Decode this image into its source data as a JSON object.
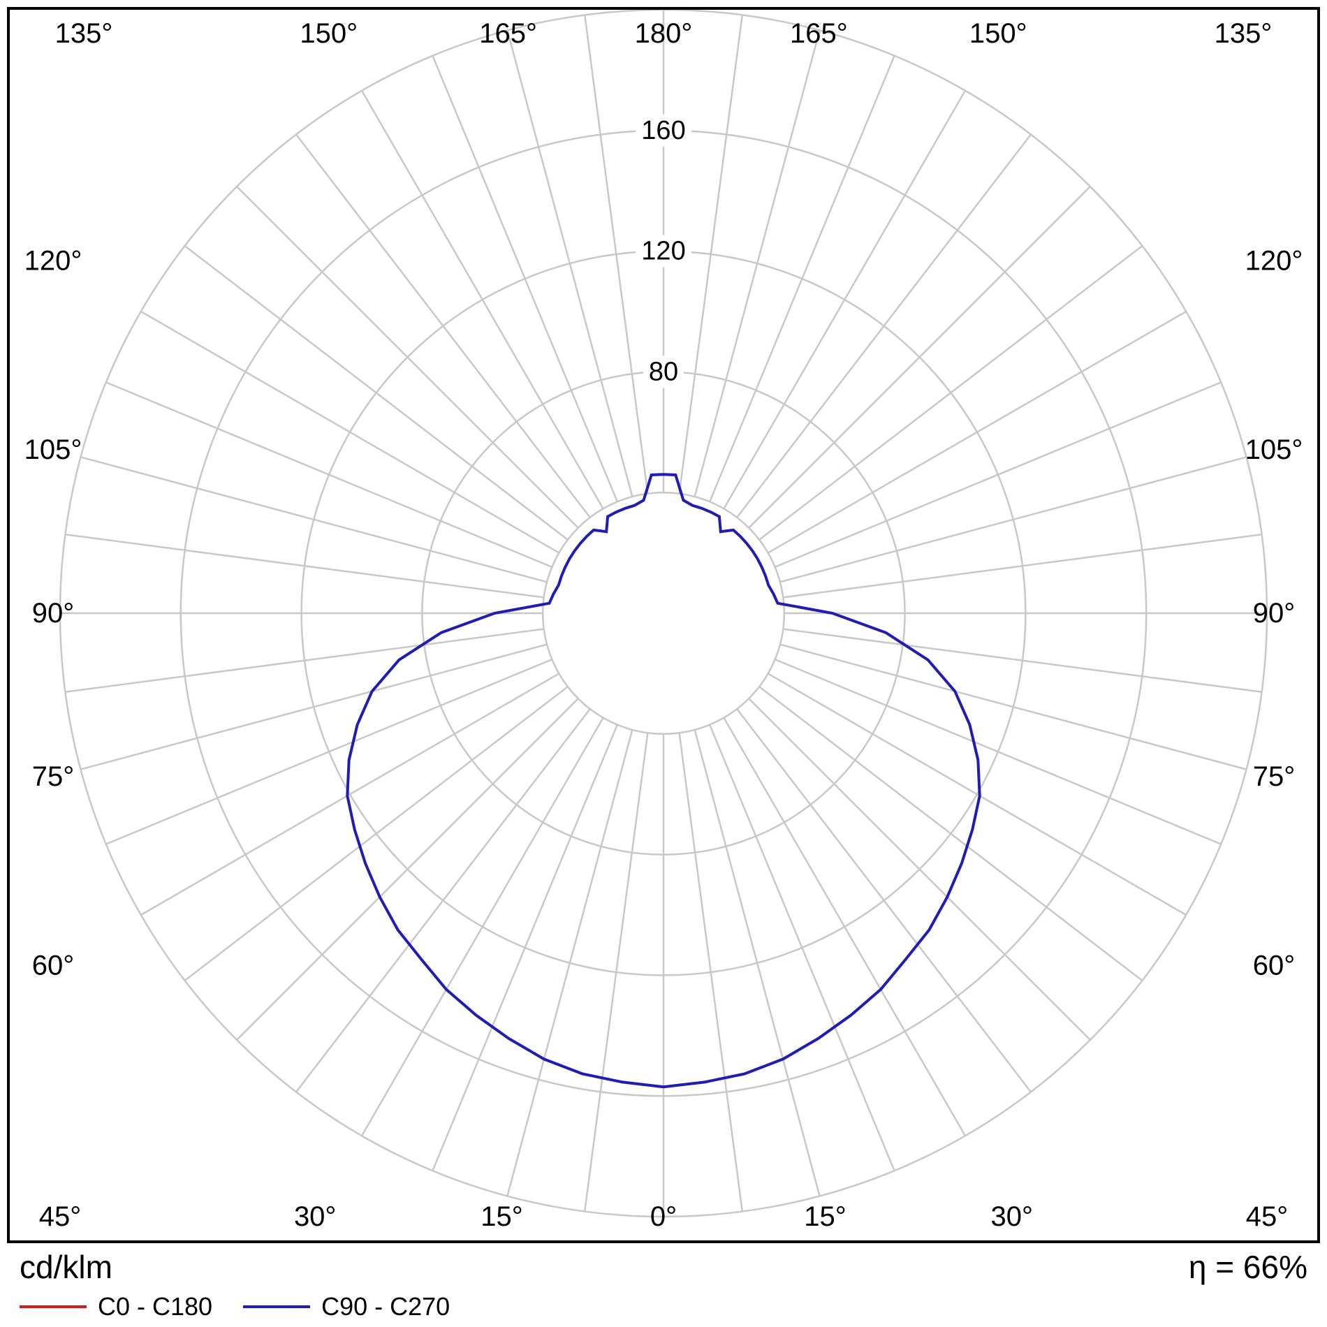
{
  "footer": {
    "units_label": "cd/klm",
    "efficiency_label": "η = 66%"
  },
  "chart_data": {
    "type": "polar_photometric",
    "units": "cd/klm",
    "efficiency_percent": 66,
    "gamma_start": 0,
    "gamma_end": 180,
    "gamma_step": 5,
    "grid": {
      "color": "#c8c8c8",
      "ring_step": 40,
      "rings": [
        40,
        80,
        120,
        160,
        200
      ],
      "ring_labels": [
        "80",
        "120",
        "160"
      ],
      "spoke_step_deg": 7.5,
      "angle_label_step_deg": 15,
      "angle_labels": [
        "0°",
        "15°",
        "30°",
        "45°",
        "60°",
        "75°",
        "90°",
        "105°",
        "120°",
        "135°",
        "150°",
        "165°",
        "180°"
      ]
    },
    "series": [
      {
        "name": "C0 - C180",
        "color": "#cc1d1d",
        "values": [
          157,
          156,
          155,
          153,
          150,
          147,
          144,
          140,
          137,
          133,
          129,
          125,
          121,
          115,
          108,
          100,
          89,
          74,
          56,
          38,
          37,
          36,
          36,
          36,
          36,
          36,
          36,
          36,
          36,
          33,
          37,
          37,
          37,
          37,
          38,
          46,
          46
        ]
      },
      {
        "name": "C90 - C270",
        "color": "#1e1eb4",
        "values": [
          157,
          156,
          155,
          153,
          150,
          147,
          144,
          140,
          137,
          133,
          129,
          125,
          121,
          115,
          108,
          100,
          89,
          74,
          56,
          38,
          37,
          36,
          36,
          36,
          36,
          36,
          36,
          36,
          36,
          33,
          37,
          37,
          37,
          37,
          38,
          46,
          46
        ]
      }
    ]
  }
}
